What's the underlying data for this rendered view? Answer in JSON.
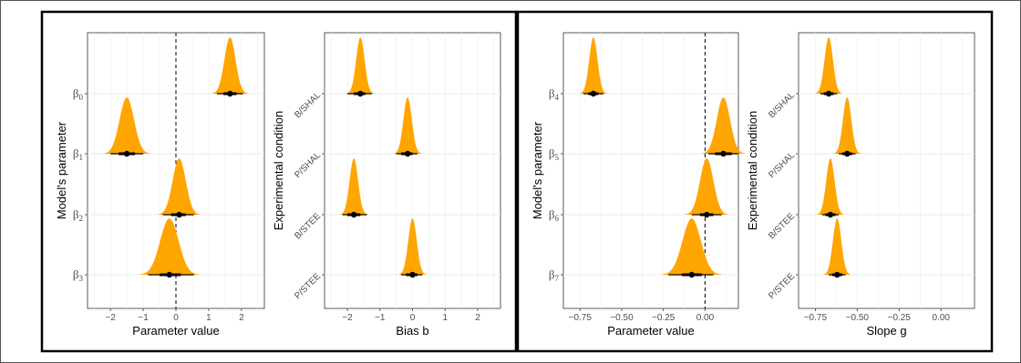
{
  "colors": {
    "density": "#FFA500",
    "point": "#000000",
    "grid": "#ebebeb",
    "border": "#333333"
  },
  "chart_data": [
    {
      "type": "density",
      "xlabel": "Parameter value",
      "ylabel": "Model's parameter",
      "xlim": [
        -2.7,
        2.7
      ],
      "xticks": [
        -2,
        -1,
        0,
        1,
        2
      ],
      "xtick_labels": [
        "−2",
        "−1",
        "0",
        "1",
        "2"
      ],
      "reference_line": 0,
      "rows": [
        {
          "label": "β",
          "sub": "0",
          "mean": 1.65,
          "sd": 0.17,
          "ci66": [
            1.45,
            1.85
          ],
          "ci95": [
            1.25,
            2.05
          ]
        },
        {
          "label": "β",
          "sub": "1",
          "mean": -1.5,
          "sd": 0.22,
          "ci66": [
            -1.75,
            -1.25
          ],
          "ci95": [
            -2.0,
            -1.0
          ]
        },
        {
          "label": "β",
          "sub": "2",
          "mean": 0.1,
          "sd": 0.2,
          "ci66": [
            -0.15,
            0.3
          ],
          "ci95": [
            -0.4,
            0.55
          ]
        },
        {
          "label": "β",
          "sub": "3",
          "mean": -0.2,
          "sd": 0.28,
          "ci66": [
            -0.5,
            0.15
          ],
          "ci95": [
            -0.85,
            0.55
          ]
        }
      ]
    },
    {
      "type": "density",
      "xlabel": "Bias b",
      "ylabel": "Experimental condition",
      "xlim": [
        -2.7,
        2.7
      ],
      "xticks": [
        -2,
        -1,
        0,
        1,
        2
      ],
      "xtick_labels": [
        "−2",
        "−1",
        "0",
        "1",
        "2"
      ],
      "rows": [
        {
          "label": "B/SHAL",
          "mean": -1.6,
          "sd": 0.13,
          "ci66": [
            -1.8,
            -1.45
          ],
          "ci95": [
            -2.0,
            -1.25
          ]
        },
        {
          "label": "P/SHAL",
          "mean": -0.15,
          "sd": 0.13,
          "ci66": [
            -0.35,
            0.0
          ],
          "ci95": [
            -0.5,
            0.15
          ]
        },
        {
          "label": "B/STEE",
          "mean": -1.8,
          "sd": 0.13,
          "ci66": [
            -2.0,
            -1.6
          ],
          "ci95": [
            -2.15,
            -1.4
          ]
        },
        {
          "label": "P/STEE",
          "mean": 0.0,
          "sd": 0.13,
          "ci66": [
            -0.2,
            0.15
          ],
          "ci95": [
            -0.35,
            0.3
          ]
        }
      ]
    },
    {
      "type": "density",
      "xlabel": "Parameter value",
      "ylabel": "Model's parameter",
      "xlim": [
        -0.85,
        0.2
      ],
      "xticks": [
        -0.75,
        -0.5,
        -0.25,
        0
      ],
      "xtick_labels": [
        "−0.75",
        "−0.50",
        "−0.25",
        "0.00"
      ],
      "reference_line": 0,
      "rows": [
        {
          "label": "β",
          "sub": "4",
          "mean": -0.67,
          "sd": 0.025,
          "ci66": [
            -0.7,
            -0.64
          ],
          "ci95": [
            -0.73,
            -0.61
          ]
        },
        {
          "label": "β",
          "sub": "5",
          "mean": 0.11,
          "sd": 0.04,
          "ci66": [
            0.06,
            0.16
          ],
          "ci95": [
            0.02,
            0.2
          ]
        },
        {
          "label": "β",
          "sub": "6",
          "mean": 0.01,
          "sd": 0.04,
          "ci66": [
            -0.03,
            0.05
          ],
          "ci95": [
            -0.08,
            0.1
          ]
        },
        {
          "label": "β",
          "sub": "7",
          "mean": -0.08,
          "sd": 0.055,
          "ci66": [
            -0.14,
            -0.02
          ],
          "ci95": [
            -0.22,
            0.05
          ]
        }
      ]
    },
    {
      "type": "density",
      "xlabel": "Slope g",
      "ylabel": "Experimental condition",
      "xlim": [
        -0.85,
        0.2
      ],
      "xticks": [
        -0.75,
        -0.5,
        -0.25,
        0
      ],
      "xtick_labels": [
        "−0.75",
        "−0.50",
        "−0.25",
        "0.00"
      ],
      "rows": [
        {
          "label": "B/SHAL",
          "mean": -0.67,
          "sd": 0.025,
          "ci66": [
            -0.7,
            -0.64
          ],
          "ci95": [
            -0.72,
            -0.62
          ]
        },
        {
          "label": "P/SHAL",
          "mean": -0.56,
          "sd": 0.025,
          "ci66": [
            -0.59,
            -0.53
          ],
          "ci95": [
            -0.61,
            -0.51
          ]
        },
        {
          "label": "B/STEE",
          "mean": -0.66,
          "sd": 0.025,
          "ci66": [
            -0.69,
            -0.63
          ],
          "ci95": [
            -0.71,
            -0.61
          ]
        },
        {
          "label": "P/STEE",
          "mean": -0.62,
          "sd": 0.025,
          "ci66": [
            -0.65,
            -0.59
          ],
          "ci95": [
            -0.67,
            -0.57
          ]
        }
      ]
    }
  ]
}
